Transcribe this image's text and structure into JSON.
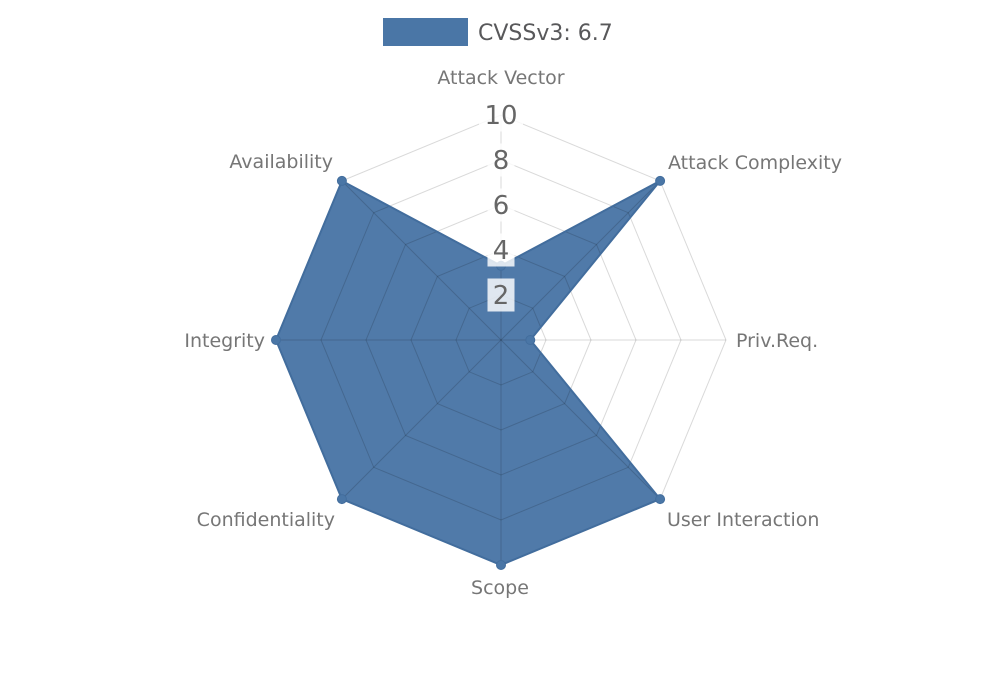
{
  "chart_data": {
    "type": "radar",
    "title": "",
    "legend_position": "top-center",
    "axes": [
      "Attack Vector",
      "Attack Complexity",
      "Priv.Req.",
      "User Interaction",
      "Scope",
      "Confidentiality",
      "Integrity",
      "Availability"
    ],
    "series": [
      {
        "name": "CVSSv3: 6.7",
        "values": [
          3.3,
          10,
          1.3,
          10,
          10,
          10,
          10,
          10
        ]
      }
    ],
    "scale": {
      "min": 0,
      "max": 10,
      "step": 2
    },
    "tick_labels": [
      "10",
      "8",
      "6",
      "4",
      "2"
    ],
    "grid": true,
    "colors": {
      "series_fill": "#4a76a6",
      "series_stroke": "#426d9d",
      "grid_line": "rgba(0,0,0,0.15)",
      "axis_label": "#767676",
      "tick_text": "#666666",
      "tick_box": "rgba(255,255,255,0.82)",
      "legend_text": "#58585a",
      "background": "#ffffff"
    }
  }
}
